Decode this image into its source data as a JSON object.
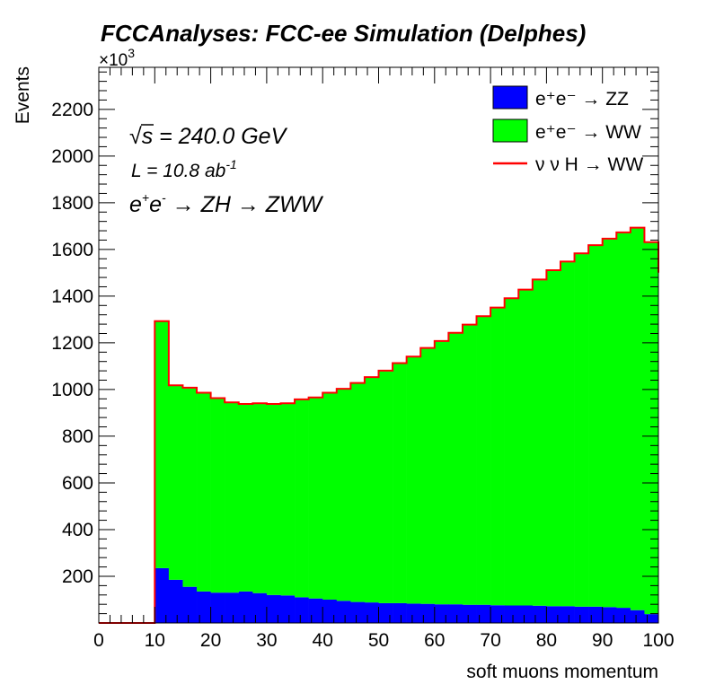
{
  "chart_data": {
    "type": "stacked-histogram",
    "title": "FCCAnalyses: FCC-ee Simulation (Delphes)",
    "xlabel": "soft muons momentum",
    "ylabel": "Events",
    "y_multiplier": "×10",
    "y_multiplier_exp": "3",
    "xlim": [
      0,
      100
    ],
    "ylim": [
      0,
      2380
    ],
    "x_ticks": [
      0,
      10,
      20,
      30,
      40,
      50,
      60,
      70,
      80,
      90,
      100
    ],
    "y_ticks": [
      200,
      400,
      600,
      800,
      1000,
      1200,
      1400,
      1600,
      1800,
      2000,
      2200
    ],
    "bin_edges": [
      0,
      2.5,
      5,
      7.5,
      10,
      12.5,
      15,
      17.5,
      20,
      22.5,
      25,
      27.5,
      30,
      32.5,
      35,
      37.5,
      40,
      42.5,
      45,
      47.5,
      50,
      52.5,
      55,
      57.5,
      60,
      62.5,
      65,
      67.5,
      70,
      72.5,
      75,
      77.5,
      80,
      82.5,
      85,
      87.5,
      90,
      92.5,
      95,
      97.5,
      100
    ],
    "series": [
      {
        "name": "e⁺e⁻ → ZZ",
        "color": "#0000ff",
        "values": [
          0,
          0,
          0,
          0,
          235,
          185,
          155,
          135,
          130,
          130,
          135,
          128,
          120,
          118,
          110,
          105,
          100,
          95,
          90,
          88,
          85,
          85,
          83,
          82,
          80,
          80,
          78,
          78,
          76,
          75,
          75,
          74,
          72,
          72,
          70,
          70,
          68,
          65,
          55,
          38
        ]
      },
      {
        "name": "e⁺e⁻ → WW",
        "color": "#00ff00",
        "values": [
          0,
          0,
          0,
          0,
          1055,
          830,
          850,
          848,
          830,
          812,
          800,
          810,
          815,
          820,
          845,
          858,
          883,
          905,
          935,
          962,
          993,
          1025,
          1055,
          1093,
          1125,
          1160,
          1197,
          1233,
          1272,
          1313,
          1350,
          1394,
          1436,
          1473,
          1510,
          1545,
          1575,
          1605,
          1635,
          1590
        ]
      },
      {
        "name": "ν ν H → WW",
        "color": "#ff0000",
        "values": [
          0,
          0,
          0,
          0,
          3,
          3,
          3,
          3,
          3,
          3,
          3,
          3,
          3,
          3,
          3,
          3,
          3,
          3,
          3,
          3,
          3,
          3,
          3,
          3,
          3,
          3,
          3,
          3,
          3,
          3,
          3,
          3,
          3,
          3,
          3,
          3,
          3,
          3,
          3,
          3
        ]
      }
    ],
    "legend_position": "top-right",
    "annotations": {
      "sqrt_s_symbol": "√",
      "sqrt_s_var": "s",
      "sqrt_s_rest": " = 240.0 GeV",
      "lumi_base": "L = 10.8 ab",
      "lumi_exp": "-1",
      "process_a": "e",
      "process_a_sup": "+",
      "process_b": "e",
      "process_b_sup": "-",
      "process_rest": " → ZH → ZWW"
    }
  }
}
